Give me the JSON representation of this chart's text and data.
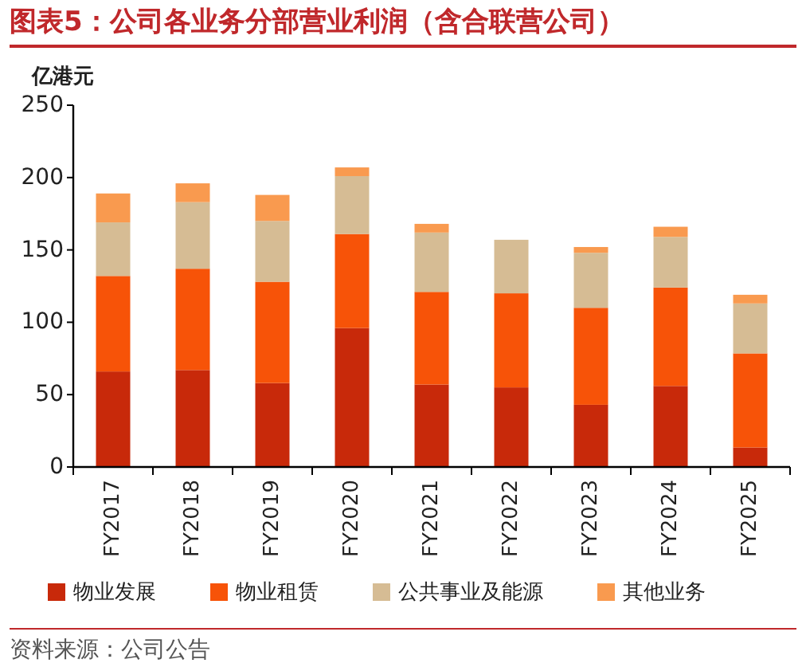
{
  "chart_data": {
    "type": "bar",
    "stacked": true,
    "title": "图表5：公司各业务分部营业利润（含合联营公司）",
    "ylabel": "亿港元",
    "categories": [
      "FY2017",
      "FY2018",
      "FY2019",
      "FY2020",
      "FY2021",
      "FY2022",
      "FY2023",
      "FY2024",
      "FY2025"
    ],
    "series": [
      {
        "name": "物业发展",
        "color": "#c8290a",
        "values": [
          66,
          67,
          58,
          96,
          57,
          55,
          43,
          56,
          13.5
        ]
      },
      {
        "name": "物业租赁",
        "color": "#f75308",
        "values": [
          66,
          70,
          70,
          65,
          64,
          65,
          67,
          68,
          65
        ]
      },
      {
        "name": "公共事业及能源",
        "color": "#d6bc94",
        "values": [
          37,
          46,
          42,
          40,
          41,
          37,
          38,
          35,
          34.5
        ]
      },
      {
        "name": "其他业务",
        "color": "#f99a4f",
        "values": [
          20,
          13,
          18,
          6,
          6,
          0,
          4,
          7,
          6
        ]
      }
    ],
    "ylim": [
      0,
      250
    ],
    "yticks": [
      0,
      50,
      100,
      150,
      200,
      250
    ],
    "grid": false,
    "legend": "bottom",
    "annotations": [
      "资料来源：公司公告"
    ]
  }
}
